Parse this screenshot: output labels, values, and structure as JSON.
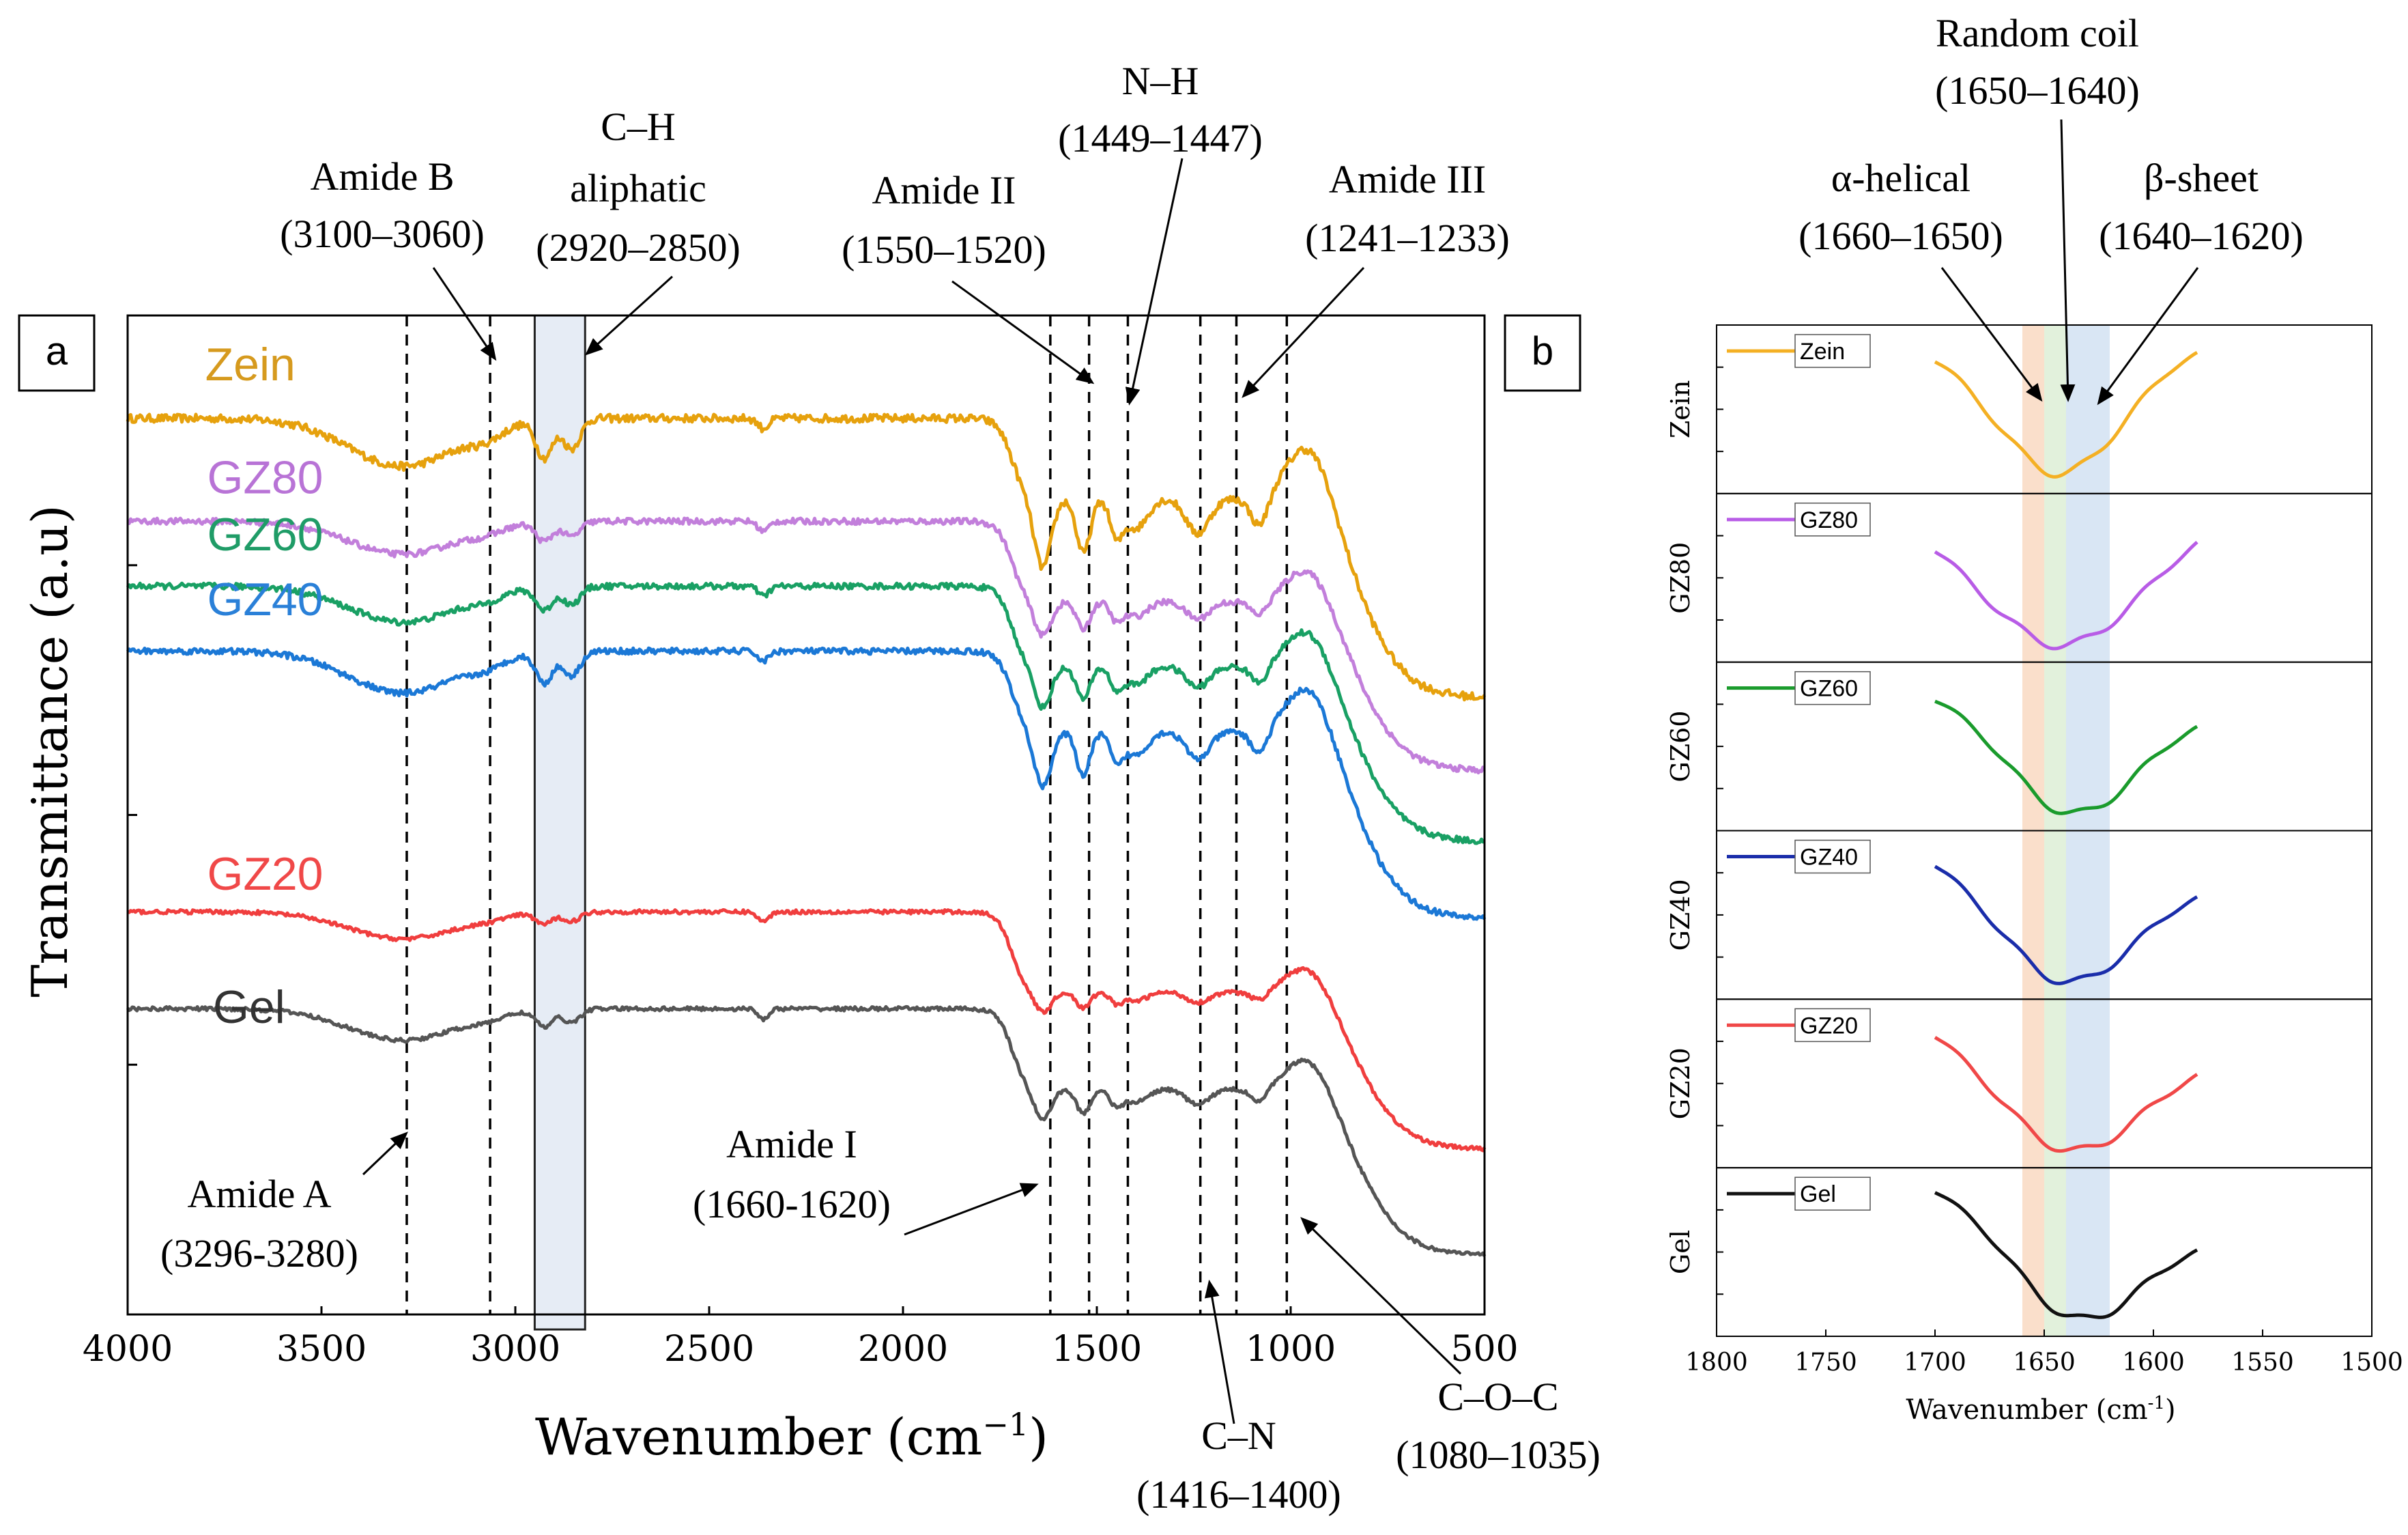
{
  "chart_data": [
    {
      "type": "line",
      "panel_label": "a",
      "title": "",
      "xlabel_main": "Wavenumber (cm",
      "xlabel_sup": "−1",
      "xlabel_close": ")",
      "ylabel": "Transmittance (a.u)",
      "xlim": [
        4000,
        500
      ],
      "ylim": [
        0,
        1
      ],
      "xticks": [
        4000,
        3500,
        3000,
        2500,
        2000,
        1500,
        1000,
        500
      ],
      "ytick_values": [
        0.25,
        0.5,
        0.75
      ],
      "shaded_band": [
        2950,
        2820
      ],
      "guide_lines": [
        3280,
        3065,
        1620,
        1520,
        1420,
        1233,
        1140,
        1010
      ],
      "series": [
        {
          "name": "Zein",
          "color": "#E6A10D",
          "label_color": "#D69A1E",
          "baseline": 0.897,
          "gain": 1.0,
          "noise": 0.004,
          "label_x": 3800,
          "label_y": 0.935,
          "legend_x": 3950,
          "legend_y": 0.91
        },
        {
          "name": "GZ80",
          "color": "#C27FDB",
          "label_color": "#B873D6",
          "baseline": 0.794,
          "gain": 0.5,
          "noise": 0.003,
          "label_x": 3795,
          "label_y": 0.822,
          "legend_x": 3950,
          "legend_y": 0.845
        },
        {
          "name": "GZ60",
          "color": "#19A064",
          "label_color": "#1F9C67",
          "baseline": 0.729,
          "gain": 0.6,
          "noise": 0.003,
          "label_x": 3795,
          "label_y": 0.765,
          "legend_x": 3950,
          "legend_y": 0.745
        },
        {
          "name": "GZ40",
          "color": "#1B78D6",
          "label_color": "#2A80D8",
          "baseline": 0.664,
          "gain": 0.8,
          "noise": 0.003,
          "label_x": 3795,
          "label_y": 0.7,
          "legend_x": 3950,
          "legend_y": 0.68
        },
        {
          "name": "GZ20",
          "color": "#F03E3E",
          "label_color": "#F04848",
          "baseline": 0.403,
          "gain": 0.3,
          "noise": 0.002,
          "label_x": 3795,
          "label_y": 0.425,
          "legend_x": 3950,
          "legend_y": 0.44
        },
        {
          "name": "Gel",
          "color": "#555555",
          "label_color": "#333333",
          "baseline": 0.306,
          "gain": 0.45,
          "noise": 0.002,
          "label_x": 3780,
          "label_y": 0.292,
          "legend_x": 3950,
          "legend_y": 0.315
        }
      ],
      "peaks": [
        {
          "name": "Amide A",
          "range": "(3296-3280)",
          "center": 3280
        },
        {
          "name": "Amide B",
          "range": "(3100–3060)",
          "center": 3080
        },
        {
          "name": "C–H aliphatic",
          "range": "(2920–2850)",
          "center": 2885
        },
        {
          "name": "Amide I",
          "range": "(1660-1620)",
          "center": 1640
        },
        {
          "name": "Amide II",
          "range": "(1550–1520)",
          "center": 1535
        },
        {
          "name": "N–H",
          "range": "(1449–1447)",
          "center": 1448
        },
        {
          "name": "C–N",
          "range": "(1416–1400)",
          "center": 1408
        },
        {
          "name": "Amide III",
          "range": "(1241–1233)",
          "center": 1237
        },
        {
          "name": "C–O–C",
          "range": "(1080–1035)",
          "center": 1058
        }
      ],
      "annotations": {
        "amide_a": {
          "line1": "Amide A",
          "line2": "(3296-3280)"
        },
        "amide_b": {
          "line1": "Amide B",
          "line2": "(3100–3060)"
        },
        "ch": {
          "line1": "C–H",
          "line2": "aliphatic",
          "line3": "(2920–2850)"
        },
        "amide_i": {
          "line1": "Amide I",
          "line2": "(1660-1620)"
        },
        "amide_ii": {
          "line1": "Amide II",
          "line2": "(1550–1520)"
        },
        "nh": {
          "line1": "N–H",
          "line2": "(1449–1447)"
        },
        "cn": {
          "line1": "C–N",
          "line2": "(1416–1400)"
        },
        "amide_iii": {
          "line1": "Amide III",
          "line2": "(1241–1233)"
        },
        "coc": {
          "line1": "C–O–C",
          "line2": "(1080–1035)"
        }
      }
    },
    {
      "type": "line",
      "panel_label": "b",
      "xlabel_main": "Wavenumber (cm",
      "xlabel_sup": "-1",
      "xlabel_close": ")",
      "xlim": [
        1800,
        1500
      ],
      "xticks": [
        1800,
        1750,
        1700,
        1650,
        1600,
        1550,
        1500
      ],
      "bands": [
        {
          "name": "α-helical",
          "range": [
            1660,
            1650
          ],
          "color": "#F6C9A8"
        },
        {
          "name": "Random coil",
          "range": [
            1650,
            1640
          ],
          "color": "#CFE8C4"
        },
        {
          "name": "β-sheet",
          "range": [
            1640,
            1620
          ],
          "color": "#BFD6EC"
        }
      ],
      "annotations": {
        "alpha": {
          "line1": "α-helical",
          "line2": "(1660–1650)"
        },
        "coil": {
          "line1": "Random coil",
          "line2": "(1650–1640)"
        },
        "beta": {
          "line1": "β-sheet",
          "line2": "(1640–1620)"
        }
      },
      "series": [
        {
          "name": "Zein",
          "color": "#F4B024",
          "y_start": 0.92,
          "y_min": 0.12,
          "y_end": 0.92,
          "center": 1643,
          "width": 30
        },
        {
          "name": "GZ80",
          "color": "#B85CE6",
          "y_start": 0.92,
          "y_min": 0.1,
          "y_end": 0.92,
          "center": 1642,
          "width": 38
        },
        {
          "name": "GZ60",
          "color": "#1A9B2C",
          "y_start": 0.85,
          "y_min": 0.1,
          "y_end": 0.72,
          "center": 1636,
          "width": 30
        },
        {
          "name": "GZ40",
          "color": "#1A2DAA",
          "y_start": 0.92,
          "y_min": 0.1,
          "y_end": 0.72,
          "center": 1638,
          "width": 32
        },
        {
          "name": "GZ20",
          "color": "#F04848",
          "y_start": 0.92,
          "y_min": 0.1,
          "y_end": 0.7,
          "center": 1636,
          "width": 34
        },
        {
          "name": "Gel",
          "color": "#111111",
          "y_start": 0.92,
          "y_min": 0.1,
          "y_end": 0.62,
          "center": 1632,
          "width": 30
        }
      ]
    }
  ]
}
